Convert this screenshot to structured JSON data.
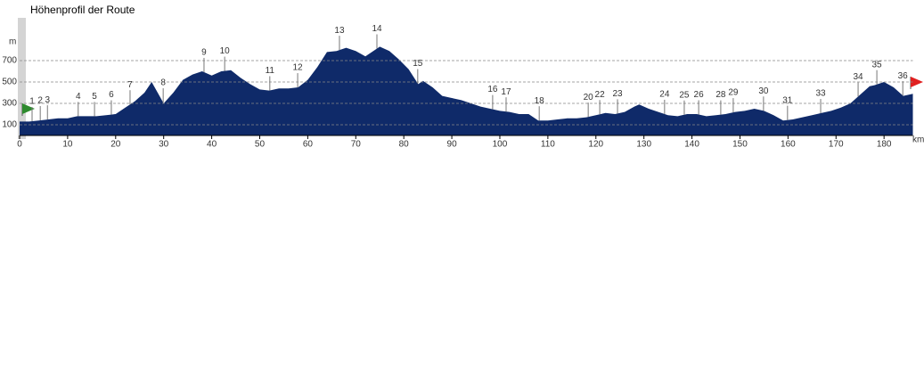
{
  "chart_data": {
    "type": "area",
    "title": "Höhenprofil der Route",
    "y_unit": "m",
    "x_unit": "km",
    "color": "#0f2a69",
    "xlim": [
      0,
      186
    ],
    "ylim": [
      0,
      1000
    ],
    "xticks": [
      0,
      10,
      20,
      30,
      40,
      50,
      60,
      70,
      80,
      90,
      100,
      110,
      120,
      130,
      140,
      150,
      160,
      170,
      180
    ],
    "yticks": [
      100,
      300,
      500,
      700
    ],
    "grid": true,
    "x": [
      0,
      2,
      4,
      6,
      8,
      10,
      12,
      14,
      16,
      18,
      20,
      22,
      24,
      26,
      27.5,
      29,
      30,
      32,
      34,
      36,
      38,
      40,
      42,
      44,
      46,
      48,
      50,
      52,
      54,
      56,
      58,
      60,
      62,
      64,
      66,
      68,
      70,
      72,
      74,
      75,
      77,
      79,
      81,
      83,
      84,
      86,
      88,
      90,
      92,
      94,
      96,
      98,
      100,
      102,
      104,
      106,
      108,
      110,
      112,
      114,
      116,
      118,
      120,
      122,
      124,
      126,
      128,
      129,
      131,
      133,
      135,
      137,
      139,
      141,
      143,
      145,
      147,
      149,
      151,
      153,
      155,
      157,
      159,
      161,
      163,
      165,
      167,
      169,
      171,
      173,
      175,
      177,
      178,
      180,
      182,
      184,
      186
    ],
    "values": [
      130,
      130,
      140,
      150,
      160,
      160,
      180,
      180,
      180,
      190,
      200,
      260,
      320,
      400,
      500,
      380,
      300,
      400,
      520,
      570,
      600,
      560,
      600,
      610,
      540,
      480,
      430,
      420,
      440,
      440,
      450,
      520,
      640,
      780,
      790,
      820,
      790,
      740,
      800,
      830,
      790,
      710,
      620,
      480,
      510,
      450,
      370,
      350,
      330,
      300,
      270,
      250,
      230,
      220,
      200,
      200,
      140,
      140,
      150,
      160,
      160,
      170,
      190,
      210,
      200,
      220,
      270,
      290,
      250,
      220,
      190,
      180,
      200,
      200,
      180,
      190,
      200,
      220,
      230,
      250,
      230,
      190,
      140,
      150,
      170,
      190,
      210,
      230,
      260,
      300,
      380,
      460,
      470,
      500,
      450,
      370,
      390
    ],
    "waypoints": [
      {
        "label": "1",
        "x": 2.6
      },
      {
        "label": "2",
        "x": 4.3
      },
      {
        "label": "3",
        "x": 5.8
      },
      {
        "label": "4",
        "x": 12.2
      },
      {
        "label": "5",
        "x": 15.6
      },
      {
        "label": "6",
        "x": 19.1
      },
      {
        "label": "7",
        "x": 23.0
      },
      {
        "label": "8",
        "x": 29.9
      },
      {
        "label": "9",
        "x": 38.4
      },
      {
        "label": "10",
        "x": 42.7
      },
      {
        "label": "11",
        "x": 52.1
      },
      {
        "label": "12",
        "x": 57.9
      },
      {
        "label": "13",
        "x": 66.6
      },
      {
        "label": "14",
        "x": 74.4
      },
      {
        "label": "15",
        "x": 82.9
      },
      {
        "label": "16",
        "x": 98.5
      },
      {
        "label": "17",
        "x": 101.3
      },
      {
        "label": "18",
        "x": 108.2
      },
      {
        "label": "20",
        "x": 118.4
      },
      {
        "label": "22",
        "x": 120.8
      },
      {
        "label": "23",
        "x": 124.5
      },
      {
        "label": "24",
        "x": 134.3
      },
      {
        "label": "25",
        "x": 138.4
      },
      {
        "label": "26",
        "x": 141.4
      },
      {
        "label": "28",
        "x": 146.0
      },
      {
        "label": "29",
        "x": 148.6
      },
      {
        "label": "30",
        "x": 154.9
      },
      {
        "label": "31",
        "x": 159.9
      },
      {
        "label": "33",
        "x": 166.8
      },
      {
        "label": "34",
        "x": 174.6
      },
      {
        "label": "35",
        "x": 178.5
      },
      {
        "label": "36",
        "x": 183.9
      }
    ]
  }
}
